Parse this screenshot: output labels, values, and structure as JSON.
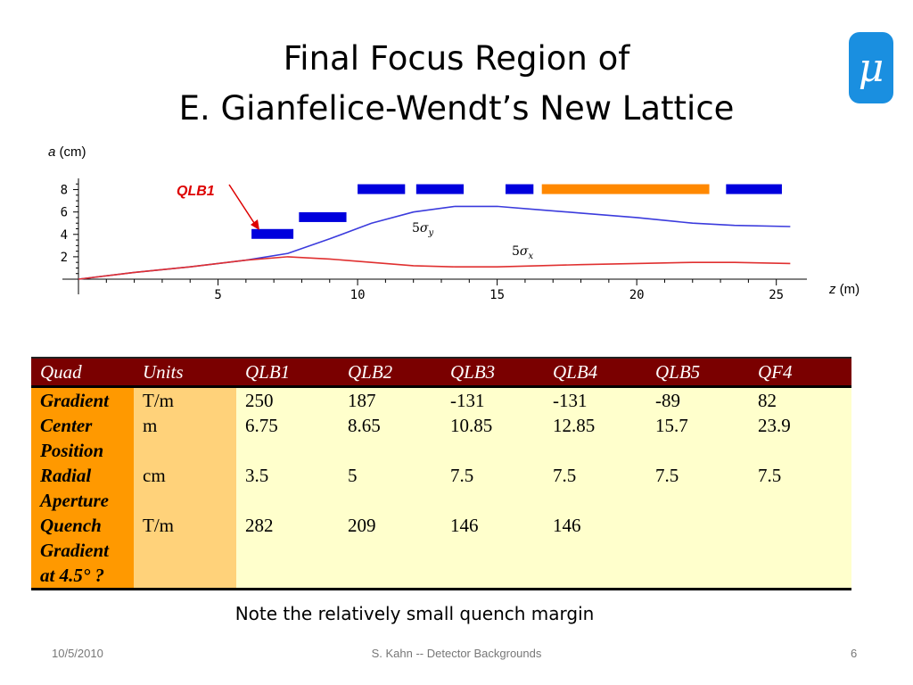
{
  "title": {
    "line1": "Final Focus Region of",
    "line2": "E. Gianfelice-Wendt’s New Lattice"
  },
  "logo": {
    "glyph": "μ"
  },
  "chart": {
    "ylabel_var": "a",
    "ylabel_unit": "(cm)",
    "xlabel_var": "z",
    "xlabel_unit": "(m)",
    "qlb1_label": "QLB1",
    "sigma_y": {
      "prefix": "5",
      "sym": "σ",
      "sub": "y"
    },
    "sigma_x": {
      "prefix": "5",
      "sym": "σ",
      "sub": "x"
    }
  },
  "chart_data": {
    "type": "line",
    "xlim": [
      0,
      26
    ],
    "ylim": [
      0,
      9
    ],
    "x_ticks": [
      5,
      10,
      15,
      20,
      25
    ],
    "y_ticks": [
      2,
      4,
      6,
      8
    ],
    "series": [
      {
        "name": "5σy",
        "color": "#3b3bdd",
        "x": [
          0,
          2,
          4,
          6,
          7.5,
          9,
          10.5,
          12,
          13.5,
          15,
          16.5,
          18,
          20,
          22,
          23.5,
          25.5
        ],
        "y": [
          0,
          0.6,
          1.1,
          1.7,
          2.3,
          3.6,
          5.0,
          6.0,
          6.5,
          6.5,
          6.2,
          5.9,
          5.5,
          5.0,
          4.8,
          4.7
        ]
      },
      {
        "name": "5σx",
        "color": "#e03030",
        "x": [
          0,
          2,
          4,
          6,
          7.5,
          9,
          10.5,
          12,
          13.5,
          15,
          16.5,
          18,
          20,
          22,
          23.5,
          25.5
        ],
        "y": [
          0,
          0.6,
          1.1,
          1.7,
          2.0,
          1.8,
          1.5,
          1.2,
          1.1,
          1.1,
          1.2,
          1.3,
          1.4,
          1.5,
          1.5,
          1.4
        ]
      }
    ],
    "magnets": [
      {
        "start": 6.2,
        "end": 7.7,
        "half_aperture": 4.0,
        "color": "#0000dd"
      },
      {
        "start": 7.9,
        "end": 9.6,
        "half_aperture": 5.5,
        "color": "#0000dd"
      },
      {
        "start": 10.0,
        "end": 11.7,
        "half_aperture": 8.0,
        "color": "#0000dd"
      },
      {
        "start": 12.1,
        "end": 13.8,
        "half_aperture": 8.0,
        "color": "#0000dd"
      },
      {
        "start": 15.3,
        "end": 16.3,
        "half_aperture": 8.0,
        "color": "#0000dd"
      },
      {
        "start": 16.6,
        "end": 22.6,
        "half_aperture": 8.0,
        "color": "#ff8800"
      },
      {
        "start": 23.2,
        "end": 25.2,
        "half_aperture": 8.0,
        "color": "#0000dd"
      }
    ]
  },
  "table": {
    "headers": [
      "Quad",
      "Units",
      "QLB1",
      "QLB2",
      "QLB3",
      "QLB4",
      "QLB5",
      "QF4"
    ],
    "rows": {
      "gradient": {
        "label": "Gradient",
        "units": "T/m",
        "values": [
          "250",
          "187",
          "-131",
          "-131",
          "-89",
          "82"
        ]
      },
      "center": {
        "label1": "Center",
        "label2": "Position",
        "units": "m",
        "values": [
          "6.75",
          "8.65",
          "10.85",
          "12.85",
          "15.7",
          "23.9"
        ]
      },
      "radial": {
        "label1": "Radial",
        "label2": "Aperture",
        "units": "cm",
        "values": [
          "3.5",
          "5",
          "7.5",
          "7.5",
          "7.5",
          "7.5"
        ]
      },
      "quench": {
        "label1": "Quench",
        "label2": "Gradient",
        "label3": "at 4.5° ?",
        "units": "T/m",
        "values": [
          "282",
          "209",
          "146",
          "146",
          "",
          ""
        ]
      }
    }
  },
  "note": "Note the relatively small quench margin",
  "footer": {
    "date": "10/5/2010",
    "center": "S. Kahn -- Detector Backgrounds",
    "page": "6"
  }
}
